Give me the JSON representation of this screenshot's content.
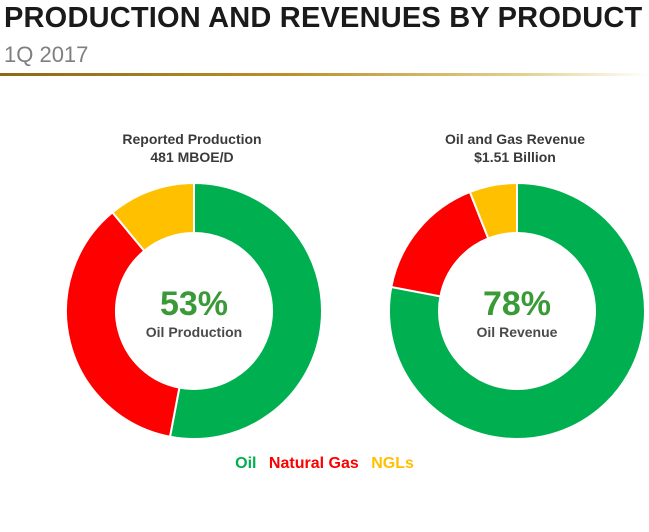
{
  "header": {
    "title": "PRODUCTION AND REVENUES BY PRODUCT",
    "subtitle": "1Q 2017"
  },
  "colors": {
    "oil": "#00b050",
    "natural_gas": "#ff0000",
    "ngls": "#ffc000",
    "highlight_text": "#3a9a38"
  },
  "chart_data": [
    {
      "type": "pie",
      "title": "Reported Production",
      "subtitle": "481 MBOE/D",
      "categories": [
        "Oil",
        "Natural Gas",
        "NGLs"
      ],
      "values": [
        53,
        36,
        11
      ],
      "colors": [
        "#00b050",
        "#ff0000",
        "#ffc000"
      ],
      "center_value": "53%",
      "center_label": "Oil Production"
    },
    {
      "type": "pie",
      "title": "Oil and Gas Revenue",
      "subtitle": "$1.51 Billion",
      "categories": [
        "Oil",
        "Natural Gas",
        "NGLs"
      ],
      "values": [
        78,
        16,
        6
      ],
      "colors": [
        "#00b050",
        "#ff0000",
        "#ffc000"
      ],
      "center_value": "78%",
      "center_label": "Oil Revenue"
    }
  ],
  "legend": {
    "items": [
      {
        "label": "Oil",
        "color": "#00b050"
      },
      {
        "label": "Natural Gas",
        "color": "#ff0000"
      },
      {
        "label": "NGLs",
        "color": "#ffc000"
      }
    ]
  }
}
